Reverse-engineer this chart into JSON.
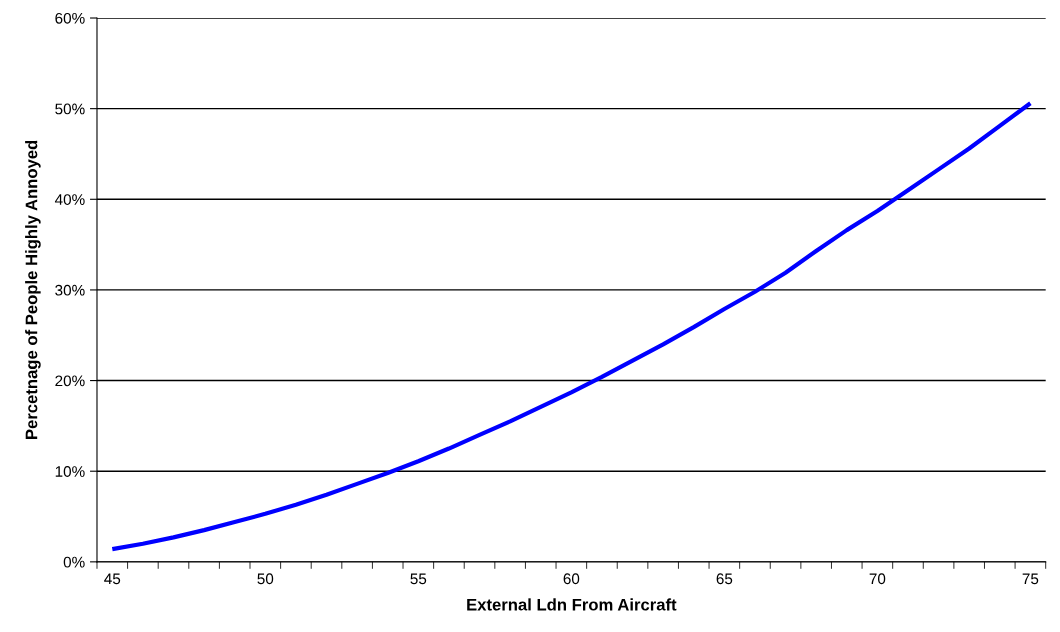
{
  "chart_data": {
    "type": "line",
    "xlabel": "External Ldn From Aircraft",
    "ylabel": "Percetnage of People Highly Annoyed",
    "categories": [
      "45",
      null,
      null,
      null,
      null,
      "50",
      null,
      null,
      null,
      null,
      "55",
      null,
      null,
      null,
      null,
      "60",
      null,
      null,
      null,
      null,
      "65",
      null,
      null,
      null,
      null,
      "70",
      null,
      null,
      null,
      null,
      "75"
    ],
    "series": [
      {
        "color": "#0000ff",
        "values": [
          1.4,
          2.0,
          2.7,
          3.5,
          4.4,
          5.3,
          6.3,
          7.4,
          8.6,
          9.8,
          11.1,
          12.5,
          14.0,
          15.5,
          17.1,
          18.7,
          20.4,
          22.2,
          24.0,
          25.9,
          27.9,
          29.8,
          31.9,
          34.3,
          36.6,
          38.7,
          41.0,
          43.3,
          45.6,
          48.1,
          50.6
        ]
      }
    ],
    "ylim": [
      0,
      60
    ],
    "yticks": [
      {
        "value": 0,
        "label": "0%"
      },
      {
        "value": 10,
        "label": "10%"
      },
      {
        "value": 20,
        "label": "20%"
      },
      {
        "value": 30,
        "label": "30%"
      },
      {
        "value": 40,
        "label": "40%"
      },
      {
        "value": 50,
        "label": "50%"
      },
      {
        "value": 60,
        "label": "60%"
      }
    ],
    "grid": "y",
    "marker": "none",
    "line_style": "solid"
  }
}
